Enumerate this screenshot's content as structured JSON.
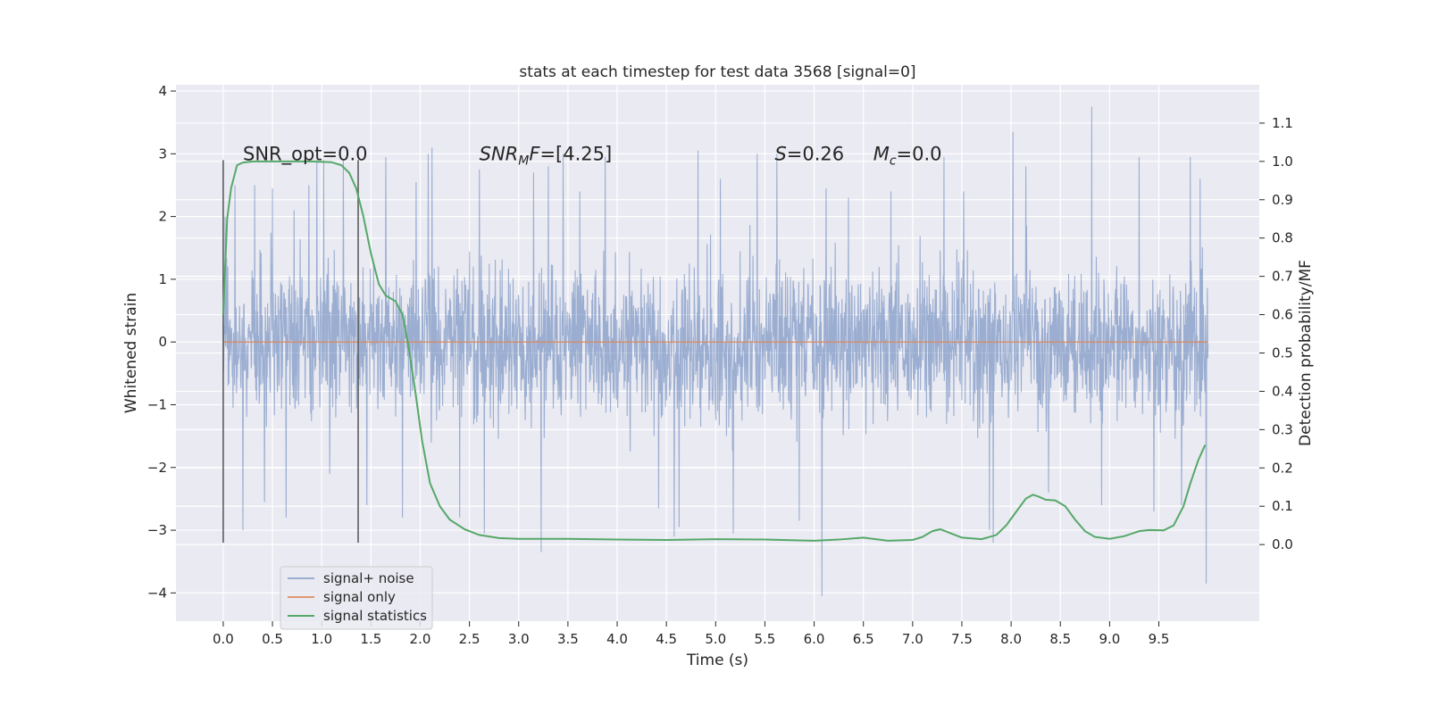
{
  "chart_data": {
    "type": "line",
    "title": "stats at each timestep for test data 3568 [signal=0]",
    "xlabel": "Time (s)",
    "ylabel": "Whitened strain",
    "ylabel_right": "Detection probability/MF",
    "xlim": [
      -0.48,
      10.52
    ],
    "ylim": [
      -4.45,
      4.1
    ],
    "ylim_right": [
      -0.2,
      1.2
    ],
    "x_ticks": [
      0.0,
      0.5,
      1.0,
      1.5,
      2.0,
      2.5,
      3.0,
      3.5,
      4.0,
      4.5,
      5.0,
      5.5,
      6.0,
      6.5,
      7.0,
      7.5,
      8.0,
      8.5,
      9.0,
      9.5
    ],
    "x_tick_labels": [
      "0.0",
      "0.5",
      "1.0",
      "1.5",
      "2.0",
      "2.5",
      "3.0",
      "3.5",
      "4.0",
      "4.5",
      "5.0",
      "5.5",
      "6.0",
      "6.5",
      "7.0",
      "7.5",
      "8.0",
      "8.5",
      "9.0",
      "9.5"
    ],
    "y_ticks": [
      -4,
      -3,
      -2,
      -1,
      0,
      1,
      2,
      3,
      4
    ],
    "y_tick_labels": [
      "−4",
      "−3",
      "−2",
      "−1",
      "0",
      "1",
      "2",
      "3",
      "4"
    ],
    "y2_ticks": [
      0.0,
      0.1,
      0.2,
      0.3,
      0.4,
      0.5,
      0.6,
      0.7,
      0.8,
      0.9,
      1.0,
      1.1
    ],
    "y2_tick_labels": [
      "0.0",
      "0.1",
      "0.2",
      "0.3",
      "0.4",
      "0.5",
      "0.6",
      "0.7",
      "0.8",
      "0.9",
      "1.0",
      "1.1"
    ],
    "grid": true,
    "legend_position": "lower-left",
    "series": [
      {
        "name": "signal+ noise",
        "axis": "left",
        "color": "#4c72b0",
        "style": "dense noise trace",
        "x_range": [
          0.0,
          10.0
        ],
        "band_typical": [
          -1.5,
          1.5
        ],
        "peaks": [
          [
            0.02,
            2.0
          ],
          [
            0.12,
            2.5
          ],
          [
            0.2,
            -3.0
          ],
          [
            0.32,
            2.5
          ],
          [
            0.42,
            -2.55
          ],
          [
            0.5,
            2.45
          ],
          [
            0.64,
            -2.8
          ],
          [
            0.72,
            2.1
          ],
          [
            0.87,
            2.5
          ],
          [
            0.95,
            2.9
          ],
          [
            1.02,
            2.9
          ],
          [
            1.08,
            -2.1
          ],
          [
            1.22,
            2.9
          ],
          [
            1.46,
            -2.6
          ],
          [
            1.65,
            2.95
          ],
          [
            1.82,
            -2.8
          ],
          [
            1.96,
            2.55
          ],
          [
            2.08,
            3.0
          ],
          [
            2.12,
            3.1
          ],
          [
            2.4,
            -2.8
          ],
          [
            2.6,
            2.75
          ],
          [
            2.65,
            -3.05
          ],
          [
            3.15,
            2.7
          ],
          [
            3.23,
            -3.35
          ],
          [
            3.3,
            2.8
          ],
          [
            3.45,
            3.0
          ],
          [
            3.62,
            2.4
          ],
          [
            3.88,
            2.95
          ],
          [
            4.42,
            -2.65
          ],
          [
            4.58,
            -3.1
          ],
          [
            4.63,
            -2.95
          ],
          [
            4.82,
            3.05
          ],
          [
            5.05,
            2.6
          ],
          [
            5.18,
            -3.05
          ],
          [
            5.42,
            3.0
          ],
          [
            5.62,
            3.0
          ],
          [
            5.85,
            -2.85
          ],
          [
            6.08,
            -4.05
          ],
          [
            6.12,
            2.45
          ],
          [
            6.35,
            2.3
          ],
          [
            6.78,
            2.4
          ],
          [
            7.32,
            2.95
          ],
          [
            7.52,
            2.4
          ],
          [
            7.78,
            -3.0
          ],
          [
            7.82,
            -3.2
          ],
          [
            8.02,
            3.35
          ],
          [
            8.15,
            2.8
          ],
          [
            8.38,
            -2.4
          ],
          [
            8.82,
            3.75
          ],
          [
            8.92,
            -2.6
          ],
          [
            9.3,
            2.95
          ],
          [
            9.45,
            -2.7
          ],
          [
            9.73,
            -2.6
          ],
          [
            9.82,
            2.95
          ],
          [
            9.92,
            2.6
          ],
          [
            9.98,
            -3.85
          ]
        ]
      },
      {
        "name": "signal only",
        "axis": "left",
        "color": "#dd8452",
        "x": [
          0.0,
          10.0
        ],
        "y": [
          0.0,
          0.0
        ]
      },
      {
        "name": "signal statistics",
        "axis": "right",
        "color": "#55a868",
        "x": [
          0.0,
          0.04,
          0.08,
          0.14,
          0.2,
          0.3,
          0.5,
          0.7,
          0.9,
          1.1,
          1.2,
          1.28,
          1.35,
          1.42,
          1.5,
          1.58,
          1.65,
          1.75,
          1.82,
          1.88,
          1.95,
          2.02,
          2.1,
          2.2,
          2.3,
          2.45,
          2.6,
          2.8,
          3.0,
          3.5,
          4.0,
          4.5,
          5.0,
          5.5,
          6.0,
          6.25,
          6.5,
          6.75,
          7.0,
          7.1,
          7.2,
          7.28,
          7.35,
          7.5,
          7.7,
          7.85,
          7.95,
          8.05,
          8.15,
          8.22,
          8.28,
          8.35,
          8.45,
          8.55,
          8.65,
          8.75,
          8.85,
          9.0,
          9.15,
          9.3,
          9.4,
          9.55,
          9.65,
          9.75,
          9.82,
          9.9,
          9.97
        ],
        "y": [
          0.6,
          0.85,
          0.93,
          0.99,
          0.997,
          1.0,
          1.0,
          1.0,
          1.0,
          0.998,
          0.99,
          0.97,
          0.93,
          0.86,
          0.76,
          0.68,
          0.65,
          0.635,
          0.6,
          0.52,
          0.4,
          0.27,
          0.16,
          0.1,
          0.065,
          0.04,
          0.025,
          0.017,
          0.015,
          0.015,
          0.013,
          0.012,
          0.014,
          0.013,
          0.01,
          0.013,
          0.018,
          0.01,
          0.012,
          0.02,
          0.035,
          0.04,
          0.033,
          0.018,
          0.014,
          0.025,
          0.05,
          0.085,
          0.12,
          0.13,
          0.125,
          0.117,
          0.115,
          0.1,
          0.065,
          0.035,
          0.02,
          0.015,
          0.022,
          0.035,
          0.038,
          0.037,
          0.05,
          0.1,
          0.16,
          0.22,
          0.26
        ]
      }
    ],
    "vlines": [
      {
        "x": 0.0,
        "y_range": [
          -3.2,
          2.9
        ],
        "color": "#555555"
      },
      {
        "x": 1.37,
        "y_range": [
          -3.2,
          2.9
        ],
        "color": "#555555"
      }
    ],
    "annotations": {
      "snr_opt": {
        "text": "SNR_opt=0.0",
        "x": 0.2,
        "y": 3.0
      },
      "snr_mf": {
        "base": "SNR",
        "sub": "M",
        "rest": "F=[4.25]",
        "x": 2.6,
        "y": 3.0
      },
      "s_stat": {
        "italic": "S",
        "rest": "=0.26",
        "x": 5.6,
        "y": 3.0
      },
      "mc": {
        "base": "M",
        "sub": "c",
        "rest": "=0.0",
        "x": 6.6,
        "y": 3.0
      }
    }
  }
}
